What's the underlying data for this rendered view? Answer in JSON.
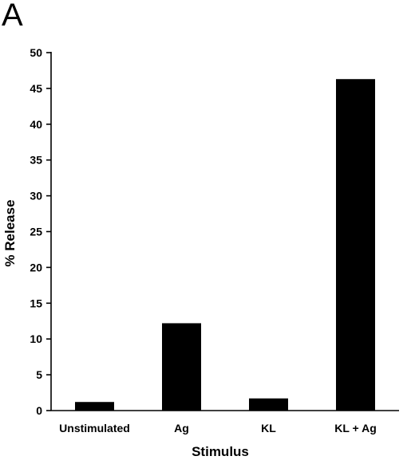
{
  "panel_label": "A",
  "chart_data": {
    "type": "bar",
    "categories": [
      "Unstimulated",
      "Ag",
      "KL",
      "KL + Ag"
    ],
    "values": [
      1.2,
      12.2,
      1.7,
      46.3
    ],
    "xlabel": "Stimulus",
    "ylabel": "% Release",
    "ylim": [
      0,
      50
    ],
    "yticks": [
      0,
      5,
      10,
      15,
      20,
      25,
      30,
      35,
      40,
      45,
      50
    ],
    "bar_color": "#000000",
    "grid": false
  }
}
